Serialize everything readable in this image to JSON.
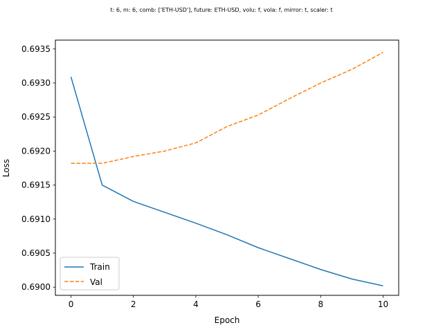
{
  "chart_data": {
    "type": "line",
    "title": "t: 6, m: 6, comb: ['ETH-USD'], future: ETH-USD, volu: f, vola: f, mirror: t, scaler: t",
    "xlabel": "Epoch",
    "ylabel": "Loss",
    "xlim": [
      -0.5,
      10.5
    ],
    "ylim": [
      0.68988,
      0.69363
    ],
    "x_ticks": [
      0,
      2,
      4,
      6,
      8,
      10
    ],
    "x_tick_labels": [
      "0",
      "2",
      "4",
      "6",
      "8",
      "10"
    ],
    "y_ticks": [
      0.69,
      0.6905,
      0.691,
      0.6915,
      0.692,
      0.6925,
      0.693,
      0.6935
    ],
    "y_tick_labels": [
      "0.6900",
      "0.6905",
      "0.6910",
      "0.6915",
      "0.6920",
      "0.6925",
      "0.6930",
      "0.6935"
    ],
    "grid": false,
    "legend_position": "lower-left",
    "x": [
      0,
      1,
      2,
      3,
      4,
      5,
      6,
      7,
      8,
      9,
      10
    ],
    "series": [
      {
        "name": "Train",
        "color": "#1f77b4",
        "linestyle": "solid",
        "values": [
          0.69309,
          0.6915,
          0.69126,
          0.6911,
          0.69094,
          0.69077,
          0.69058,
          0.69042,
          0.69026,
          0.69012,
          0.69002
        ]
      },
      {
        "name": "Val",
        "color": "#ff7f0e",
        "linestyle": "dashed",
        "values": [
          0.69182,
          0.69182,
          0.69192,
          0.692,
          0.69212,
          0.69236,
          0.69253,
          0.69277,
          0.693,
          0.6932,
          0.69345
        ]
      }
    ]
  }
}
